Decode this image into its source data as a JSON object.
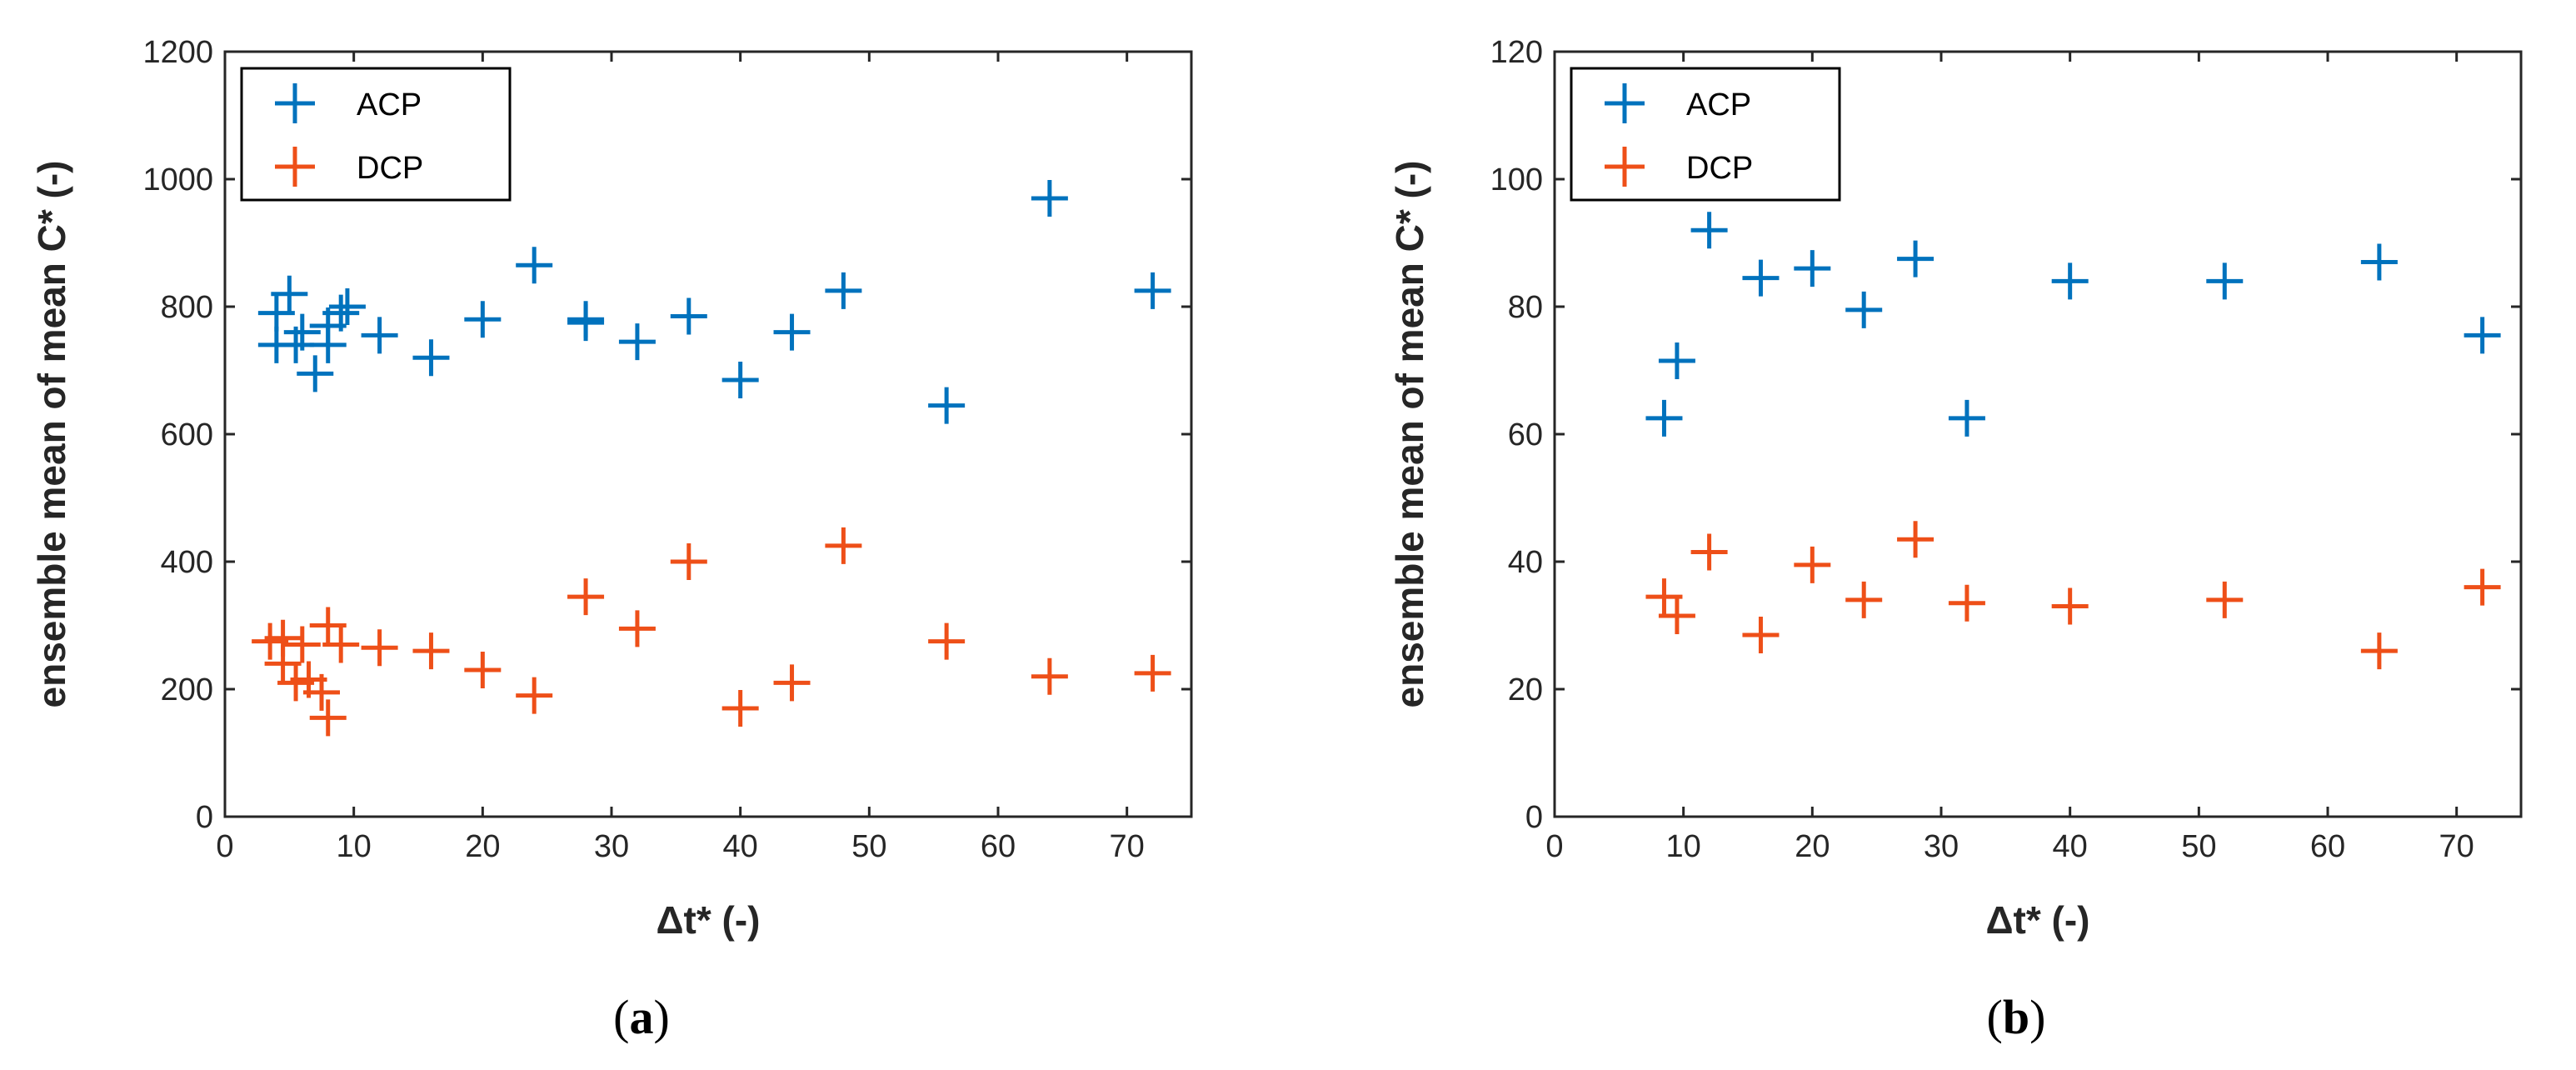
{
  "colors": {
    "acp": "#0072BD",
    "dcp": "#EE4F18",
    "axis": "#262626",
    "background": "#ffffff"
  },
  "chart_data": [
    {
      "type": "scatter",
      "panel": "a",
      "caption": {
        "open": "(",
        "letter": "a",
        "close": ")"
      },
      "xlabel": "Δt* (-)",
      "ylabel": "ensemble mean of mean C* (-)",
      "xlim": [
        0,
        75
      ],
      "ylim": [
        0,
        1200
      ],
      "xticks": [
        0,
        10,
        20,
        30,
        40,
        50,
        60,
        70
      ],
      "yticks": [
        0,
        200,
        400,
        600,
        800,
        1000,
        1200
      ],
      "marker": "+",
      "legend": "top-left",
      "series": [
        {
          "name": "ACP",
          "color": "#0072BD",
          "points": [
            [
              4,
              740
            ],
            [
              4,
              790
            ],
            [
              5,
              820
            ],
            [
              5.5,
              740
            ],
            [
              6,
              760
            ],
            [
              7,
              695
            ],
            [
              8,
              770
            ],
            [
              8,
              740
            ],
            [
              9,
              790
            ],
            [
              9.5,
              800
            ],
            [
              12,
              755
            ],
            [
              16,
              720
            ],
            [
              20,
              780
            ],
            [
              24,
              865
            ],
            [
              28,
              780
            ],
            [
              28,
              775
            ],
            [
              32,
              745
            ],
            [
              36,
              785
            ],
            [
              40,
              685
            ],
            [
              44,
              760
            ],
            [
              48,
              825
            ],
            [
              56,
              645
            ],
            [
              64,
              970
            ],
            [
              72,
              825
            ]
          ]
        },
        {
          "name": "DCP",
          "color": "#EE4F18",
          "points": [
            [
              3.5,
              275
            ],
            [
              4.5,
              280
            ],
            [
              4.5,
              240
            ],
            [
              5.5,
              210
            ],
            [
              6,
              270
            ],
            [
              6.5,
              215
            ],
            [
              7.5,
              195
            ],
            [
              8,
              300
            ],
            [
              8,
              155
            ],
            [
              9,
              270
            ],
            [
              12,
              265
            ],
            [
              16,
              260
            ],
            [
              20,
              230
            ],
            [
              24,
              190
            ],
            [
              28,
              345
            ],
            [
              32,
              295
            ],
            [
              36,
              400
            ],
            [
              40,
              170
            ],
            [
              44,
              210
            ],
            [
              48,
              425
            ],
            [
              56,
              275
            ],
            [
              64,
              220
            ],
            [
              72,
              225
            ]
          ]
        }
      ]
    },
    {
      "type": "scatter",
      "panel": "b",
      "caption": {
        "open": "(",
        "letter": "b",
        "close": ")"
      },
      "xlabel": "Δt* (-)",
      "ylabel": "ensemble mean of mean C* (-)",
      "xlim": [
        0,
        75
      ],
      "ylim": [
        0,
        120
      ],
      "xticks": [
        0,
        10,
        20,
        30,
        40,
        50,
        60,
        70
      ],
      "yticks": [
        0,
        20,
        40,
        60,
        80,
        100,
        120
      ],
      "marker": "+",
      "legend": "top-left",
      "series": [
        {
          "name": "ACP",
          "color": "#0072BD",
          "points": [
            [
              8.5,
              62.5
            ],
            [
              9.5,
              71.5
            ],
            [
              12,
              92
            ],
            [
              16,
              84.5
            ],
            [
              20,
              86
            ],
            [
              24,
              79.5
            ],
            [
              28,
              87.5
            ],
            [
              32,
              62.5
            ],
            [
              40,
              84
            ],
            [
              52,
              84
            ],
            [
              64,
              87
            ],
            [
              72,
              75.5
            ]
          ]
        },
        {
          "name": "DCP",
          "color": "#EE4F18",
          "points": [
            [
              8.5,
              34.5
            ],
            [
              9.5,
              31.5
            ],
            [
              12,
              41.5
            ],
            [
              16,
              28.5
            ],
            [
              20,
              39.5
            ],
            [
              24,
              34
            ],
            [
              28,
              43.5
            ],
            [
              32,
              33.5
            ],
            [
              40,
              33
            ],
            [
              52,
              34
            ],
            [
              64,
              26
            ],
            [
              72,
              36
            ]
          ]
        }
      ]
    }
  ]
}
